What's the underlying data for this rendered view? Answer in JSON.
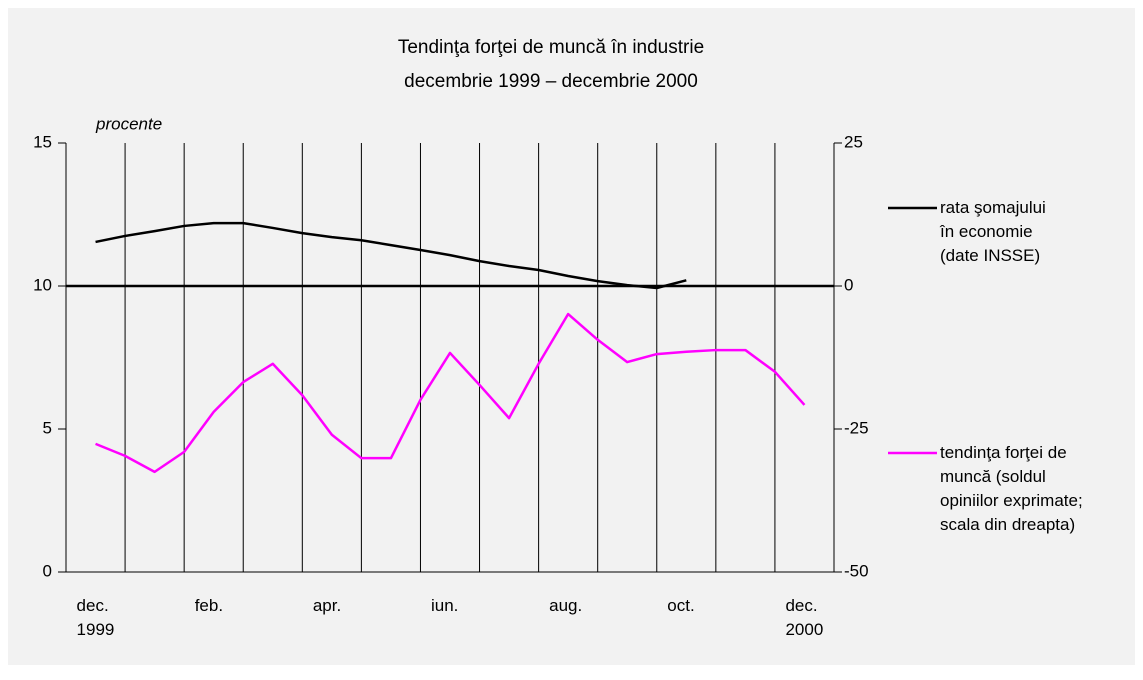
{
  "chart_data": {
    "type": "line",
    "title": "Tendinţa forţei de muncă în industrie",
    "subtitle": "decembrie 1999 – decembrie 2000",
    "y_label": "procente",
    "x": [
      0,
      0.5,
      1,
      1.5,
      2,
      2.5,
      3,
      3.5,
      4,
      4.5,
      5,
      5.5,
      6,
      6.5,
      7,
      7.5,
      8,
      8.5,
      9,
      9.5,
      10,
      10.5,
      11,
      11.5,
      12
    ],
    "xlim": [
      -0.5,
      12.5
    ],
    "xticks": [
      {
        "value": 0,
        "label": "dec. 1999"
      },
      {
        "value": 2,
        "label": "feb."
      },
      {
        "value": 4,
        "label": "apr."
      },
      {
        "value": 6,
        "label": "iun."
      },
      {
        "value": 8,
        "label": "aug."
      },
      {
        "value": 10,
        "label": "oct."
      },
      {
        "value": 12,
        "label": "dec. 2000"
      }
    ],
    "ylim": [
      0,
      15
    ],
    "yticks": [
      0,
      5,
      10,
      15
    ],
    "y2lim": [
      -50,
      25
    ],
    "y2ticks": [
      -50,
      -25,
      0,
      25
    ],
    "series": [
      {
        "name": "rata şomajului în economie (date INSSE)",
        "color": "#000000",
        "values": [
          11.54,
          11.75,
          11.92,
          12.1,
          12.2,
          12.2,
          12.03,
          11.85,
          11.71,
          11.6,
          11.43,
          11.26,
          11.08,
          10.87,
          10.7,
          10.56,
          10.35,
          10.17,
          10.03,
          9.93,
          10.2,
          null,
          null,
          null,
          null
        ]
      },
      {
        "name": "tendinţa forţei de muncă (soldul opiniilor exprimate; scala din dreapta)",
        "color": "#ff00ff",
        "axis": "y2",
        "values": [
          -27.6,
          -29.7,
          -32.5,
          -29.0,
          -22.0,
          -16.8,
          -13.6,
          -19.1,
          -26.0,
          -30.1,
          -30.1,
          -19.9,
          -11.7,
          -17.3,
          -23.1,
          -13.6,
          -4.9,
          -9.4,
          -13.3,
          -11.9,
          -11.5,
          -11.2,
          -11.2,
          -15.0,
          -20.8
        ]
      }
    ]
  }
}
